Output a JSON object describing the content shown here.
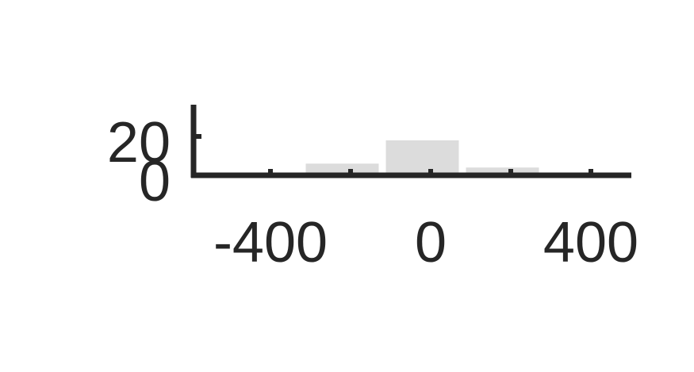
{
  "chart_data": {
    "type": "bar",
    "title": "",
    "xlabel": "",
    "ylabel": "",
    "xlim": [
      -600,
      500
    ],
    "ylim": [
      0,
      30
    ],
    "bins": [
      {
        "x0": -400,
        "x1": -200,
        "value": 6
      },
      {
        "x0": -200,
        "x1": 0,
        "value": 18
      },
      {
        "x0": 0,
        "x1": 200,
        "value": 4
      },
      {
        "x0": 200,
        "x1": 400,
        "value": 1
      }
    ],
    "x_ticks": [
      -400,
      -200,
      0,
      200,
      400
    ],
    "x_tick_labels": [
      "-400",
      "",
      "0",
      "",
      "400"
    ],
    "y_ticks": [
      0,
      20
    ],
    "y_tick_labels": [
      "0",
      "20"
    ],
    "bar_color": "#dcdcdc",
    "axis_color": "#262626",
    "grid": false
  }
}
